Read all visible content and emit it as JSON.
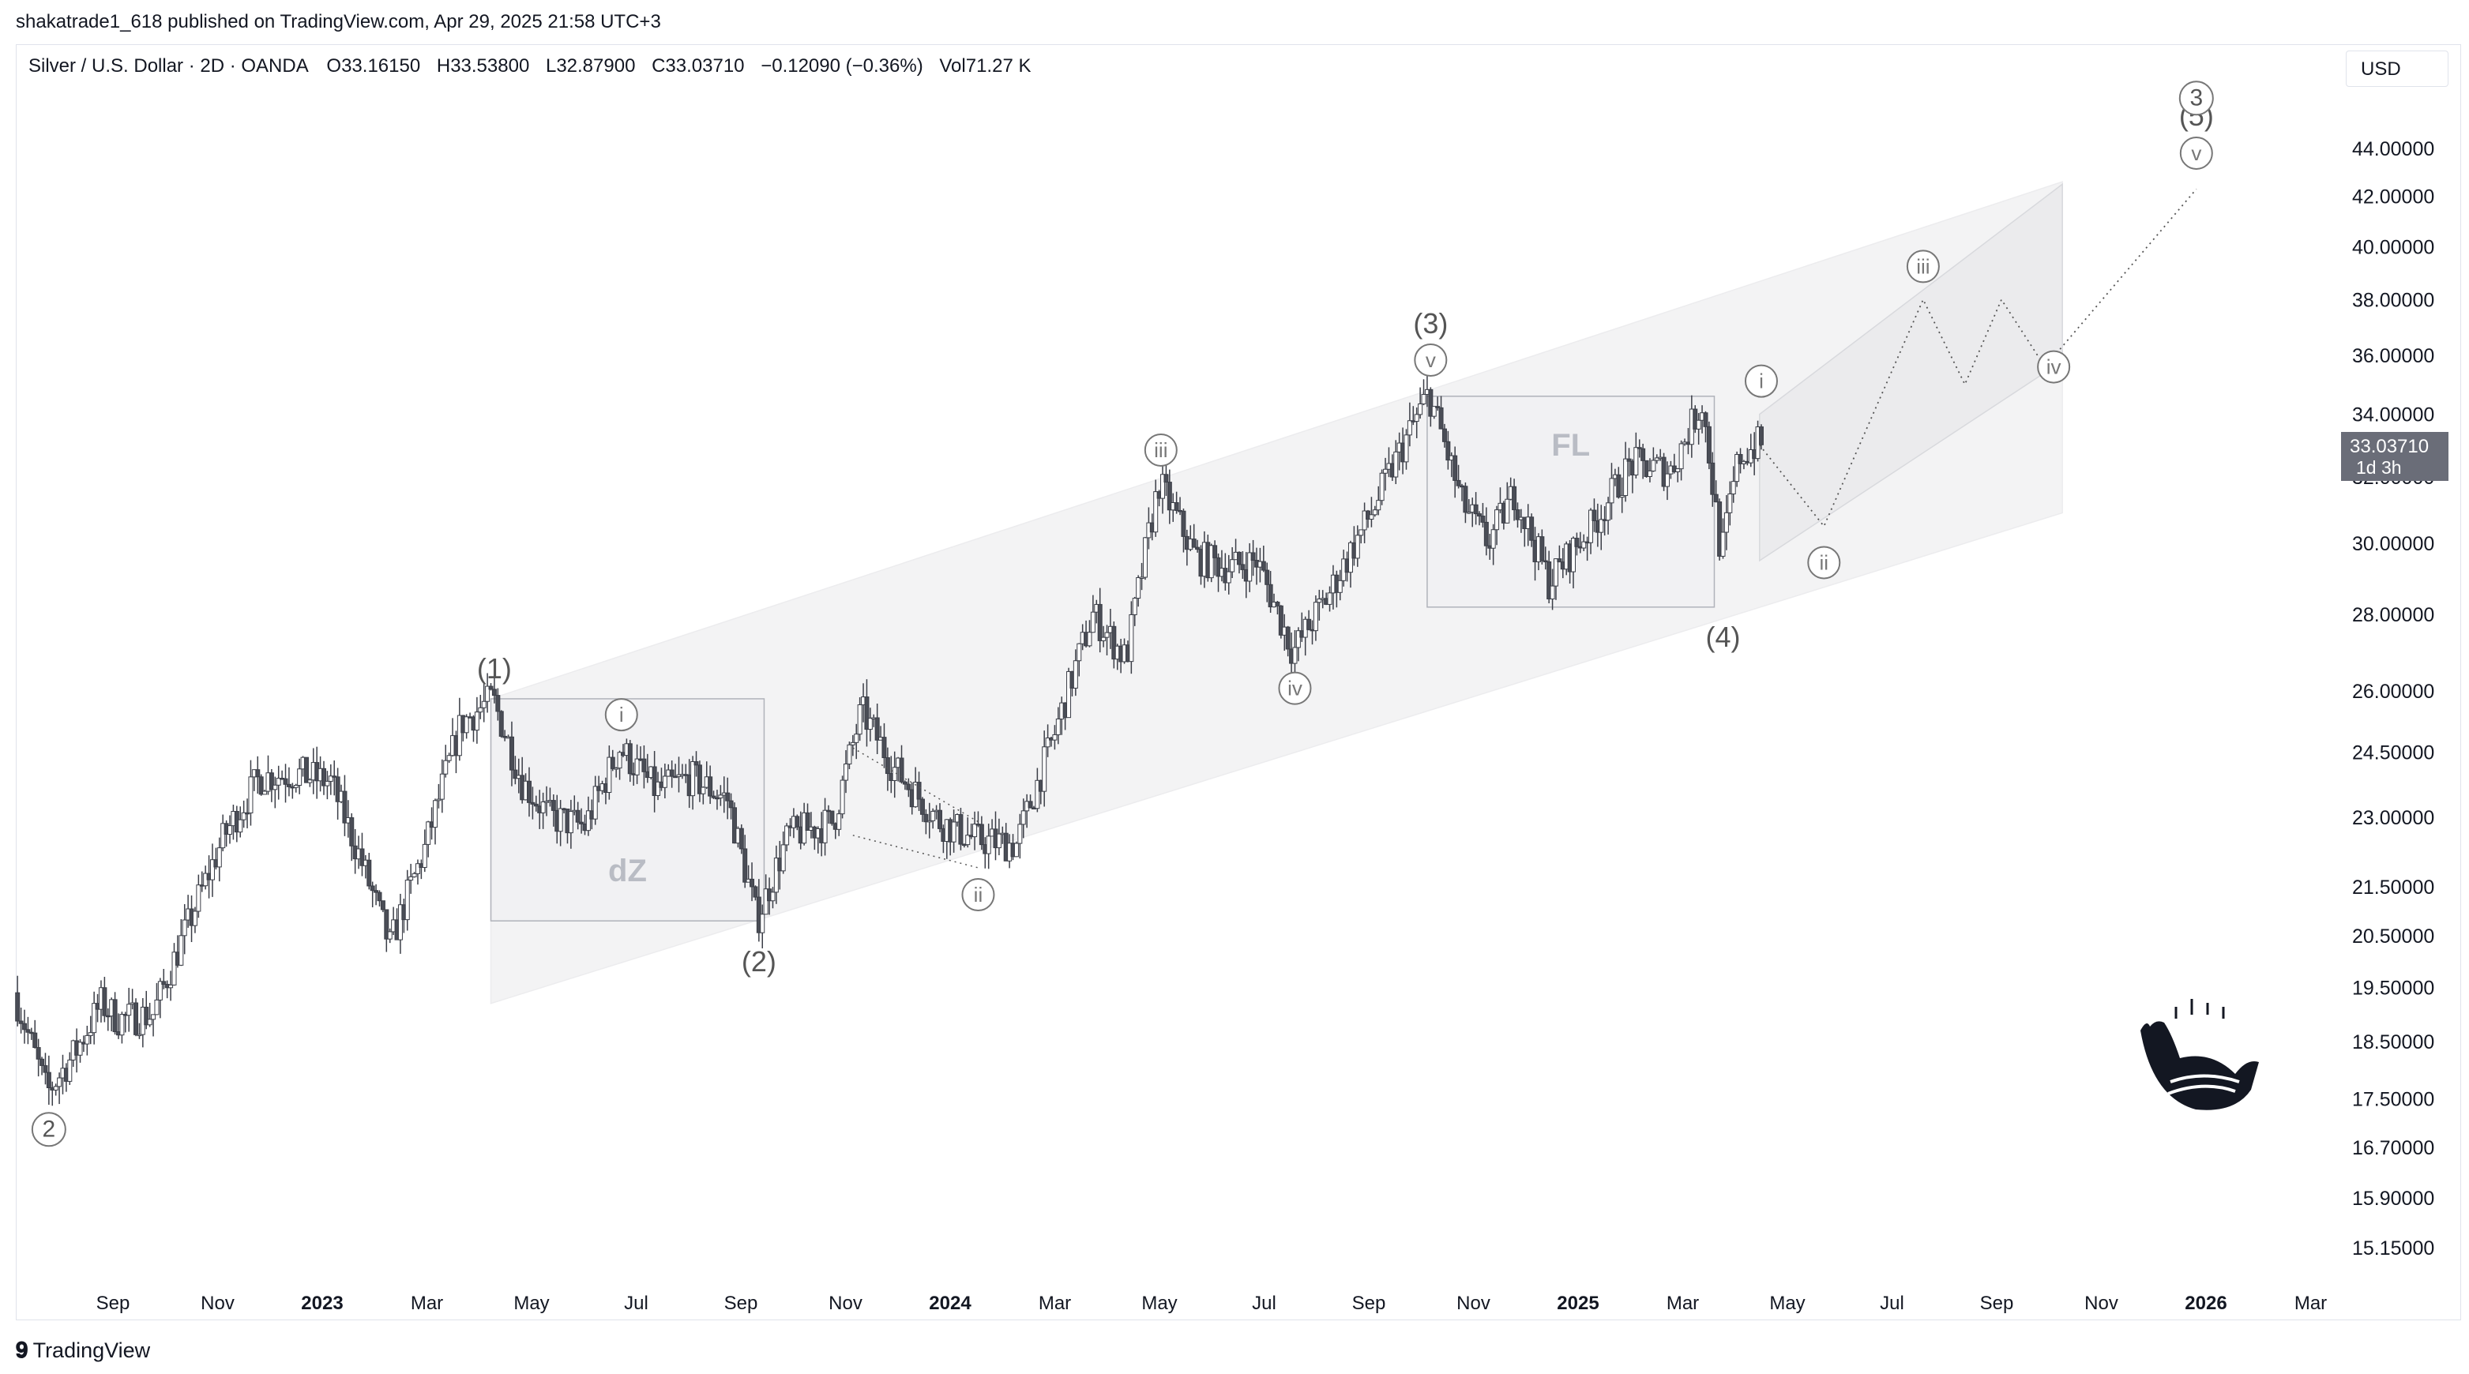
{
  "publisher_line": "shakatrade1_618 published on TradingView.com, Apr 29, 2025 21:58 UTC+3",
  "legend": {
    "symbol": "Silver / U.S. Dollar · 2D · OANDA",
    "open": "O33.16150",
    "high": "H33.53800",
    "low": "L32.87900",
    "close": "C33.03710",
    "change": "−0.12090 (−0.36%)",
    "volume": "Vol71.27 K"
  },
  "currency": "USD",
  "price_tag": {
    "value": "33.03710",
    "countdown": "1d 3h",
    "color": "#6a6d78"
  },
  "footer": {
    "brand": "TradingView"
  },
  "colors": {
    "up": "#ffffff",
    "down": "#4a4d56",
    "wick": "#3b3e47",
    "channel": "#f3f3f4"
  },
  "chart_data": {
    "type": "candlestick",
    "title": "Silver / U.S. Dollar · 2D · OANDA",
    "y_scale": "log",
    "y_ticks": [
      "44.00000",
      "42.00000",
      "40.00000",
      "38.00000",
      "36.00000",
      "34.00000",
      "32.00000",
      "30.00000",
      "28.00000",
      "26.00000",
      "24.50000",
      "23.00000",
      "21.50000",
      "20.50000",
      "19.50000",
      "18.50000",
      "17.50000",
      "16.70000",
      "15.90000",
      "15.15000"
    ],
    "x_ticks": [
      {
        "label": "Sep",
        "year": false
      },
      {
        "label": "Nov",
        "year": false
      },
      {
        "label": "2023",
        "year": true
      },
      {
        "label": "Mar",
        "year": false
      },
      {
        "label": "May",
        "year": false
      },
      {
        "label": "Jul",
        "year": false
      },
      {
        "label": "Sep",
        "year": false
      },
      {
        "label": "Nov",
        "year": false
      },
      {
        "label": "2024",
        "year": true
      },
      {
        "label": "Mar",
        "year": false
      },
      {
        "label": "May",
        "year": false
      },
      {
        "label": "Jul",
        "year": false
      },
      {
        "label": "Sep",
        "year": false
      },
      {
        "label": "Nov",
        "year": false
      },
      {
        "label": "2025",
        "year": true
      },
      {
        "label": "Mar",
        "year": false
      },
      {
        "label": "May",
        "year": false
      },
      {
        "label": "Jul",
        "year": false
      },
      {
        "label": "Sep",
        "year": false
      },
      {
        "label": "Nov",
        "year": false
      },
      {
        "label": "2026",
        "year": true
      },
      {
        "label": "Mar",
        "year": false
      }
    ],
    "price_path": [
      [
        "2022-08-01",
        19.4
      ],
      [
        "2022-08-20",
        17.6
      ],
      [
        "2022-09-05",
        18.3
      ],
      [
        "2022-09-20",
        19.2
      ],
      [
        "2022-09-30",
        18.9
      ],
      [
        "2022-10-20",
        19.0
      ],
      [
        "2022-11-10",
        20.8
      ],
      [
        "2022-11-30",
        22.6
      ],
      [
        "2022-12-20",
        23.9
      ],
      [
        "2023-01-10",
        24.0
      ],
      [
        "2023-01-30",
        23.8
      ],
      [
        "2023-02-15",
        22.2
      ],
      [
        "2023-03-05",
        20.3
      ],
      [
        "2023-03-25",
        22.3
      ],
      [
        "2023-04-15",
        25.2
      ],
      [
        "2023-05-03",
        25.8
      ],
      [
        "2023-05-20",
        23.8
      ],
      [
        "2023-06-05",
        23.0
      ],
      [
        "2023-06-25",
        22.8
      ],
      [
        "2023-07-15",
        24.6
      ],
      [
        "2023-08-05",
        23.6
      ],
      [
        "2023-08-25",
        23.9
      ],
      [
        "2023-09-15",
        23.4
      ],
      [
        "2023-10-02",
        20.8
      ],
      [
        "2023-10-20",
        22.6
      ],
      [
        "2023-11-15",
        22.9
      ],
      [
        "2023-12-01",
        25.5
      ],
      [
        "2023-12-20",
        24.1
      ],
      [
        "2024-01-15",
        22.9
      ],
      [
        "2024-02-05",
        22.5
      ],
      [
        "2024-02-28",
        22.4
      ],
      [
        "2024-03-20",
        24.8
      ],
      [
        "2024-04-12",
        28.0
      ],
      [
        "2024-05-01",
        26.8
      ],
      [
        "2024-05-20",
        31.8
      ],
      [
        "2024-06-10",
        29.6
      ],
      [
        "2024-06-30",
        29.3
      ],
      [
        "2024-07-15",
        29.5
      ],
      [
        "2024-08-05",
        27.0
      ],
      [
        "2024-08-25",
        28.5
      ],
      [
        "2024-09-20",
        31.0
      ],
      [
        "2024-10-22",
        34.7
      ],
      [
        "2024-11-10",
        31.2
      ],
      [
        "2024-11-25",
        30.0
      ],
      [
        "2024-12-10",
        31.5
      ],
      [
        "2024-12-30",
        28.9
      ],
      [
        "2025-01-25",
        30.6
      ],
      [
        "2025-02-15",
        32.4
      ],
      [
        "2025-03-10",
        32.2
      ],
      [
        "2025-03-28",
        34.4
      ],
      [
        "2025-04-08",
        29.6
      ],
      [
        "2025-04-18",
        32.6
      ],
      [
        "2025-04-29",
        33.03
      ]
    ],
    "projection": [
      [
        "2025-04-29",
        33.0
      ],
      [
        "2025-06-05",
        30.5
      ],
      [
        "2025-08-01",
        38.0
      ],
      [
        "2025-08-25",
        35.0
      ],
      [
        "2025-09-15",
        38.0
      ],
      [
        "2025-10-10",
        35.6
      ],
      [
        "2026-01-05",
        42.3
      ]
    ],
    "projection_upper": [
      [
        "2025-04-29",
        34.0
      ],
      [
        "2025-10-20",
        42.5
      ]
    ],
    "projection_lower": [
      [
        "2025-04-29",
        29.5
      ],
      [
        "2025-10-20",
        35.8
      ]
    ],
    "channel": {
      "upper": [
        [
          "2023-05-01",
          25.8
        ],
        [
          "2025-10-20",
          42.6
        ]
      ],
      "lower": [
        [
          "2023-05-01",
          19.2
        ],
        [
          "2025-10-20",
          30.9
        ]
      ],
      "color": "#f3f3f4"
    },
    "boxes": [
      {
        "label": "dZ",
        "start": "2023-05-01",
        "end": "2023-10-05",
        "top": 25.8,
        "bottom": 20.8
      },
      {
        "label": "FL",
        "start": "2024-10-20",
        "end": "2025-04-03",
        "top": 34.6,
        "bottom": 28.2
      }
    ],
    "labels": [
      {
        "text": "(1)",
        "date": "2023-05-03",
        "price": 25.8,
        "pos": "above"
      },
      {
        "text": "(2)",
        "date": "2023-10-02",
        "price": 20.8,
        "pos": "below"
      },
      {
        "text": "(3)",
        "date": "2024-10-22",
        "price": 34.7,
        "pos": "above2"
      },
      {
        "text": "(4)",
        "date": "2025-04-08",
        "price": 28.5,
        "pos": "below"
      },
      {
        "text": "(5)",
        "date": "2026-01-05",
        "price": 45.4,
        "pos": "at"
      }
    ],
    "circled_labels": [
      {
        "text": "2",
        "date": "2022-08-20",
        "price": 17.6,
        "pos": "below",
        "big": true
      },
      {
        "text": "3",
        "date": "2026-01-05",
        "price": 46.2,
        "pos": "at",
        "big": true
      },
      {
        "text": "i",
        "date": "2023-07-15",
        "price": 24.6,
        "pos": "above"
      },
      {
        "text": "ii",
        "date": "2024-02-05",
        "price": 22.1,
        "pos": "below"
      },
      {
        "text": "iii",
        "date": "2024-05-20",
        "price": 31.8,
        "pos": "above"
      },
      {
        "text": "iv",
        "date": "2024-08-05",
        "price": 27.0,
        "pos": "below"
      },
      {
        "text": "v",
        "date": "2024-10-22",
        "price": 34.7,
        "pos": "above"
      },
      {
        "text": "i",
        "date": "2025-04-30",
        "price": 34.0,
        "pos": "above"
      },
      {
        "text": "ii",
        "date": "2025-06-05",
        "price": 30.5,
        "pos": "below"
      },
      {
        "text": "iii",
        "date": "2025-08-01",
        "price": 38.0,
        "pos": "above"
      },
      {
        "text": "iv",
        "date": "2025-10-15",
        "price": 35.6,
        "pos": "at"
      },
      {
        "text": "v",
        "date": "2026-01-05",
        "price": 43.8,
        "pos": "at"
      }
    ],
    "box_labels": [
      {
        "text": "dZ",
        "box": 0
      },
      {
        "text": "FL",
        "box": 1
      }
    ],
    "grid": false
  }
}
